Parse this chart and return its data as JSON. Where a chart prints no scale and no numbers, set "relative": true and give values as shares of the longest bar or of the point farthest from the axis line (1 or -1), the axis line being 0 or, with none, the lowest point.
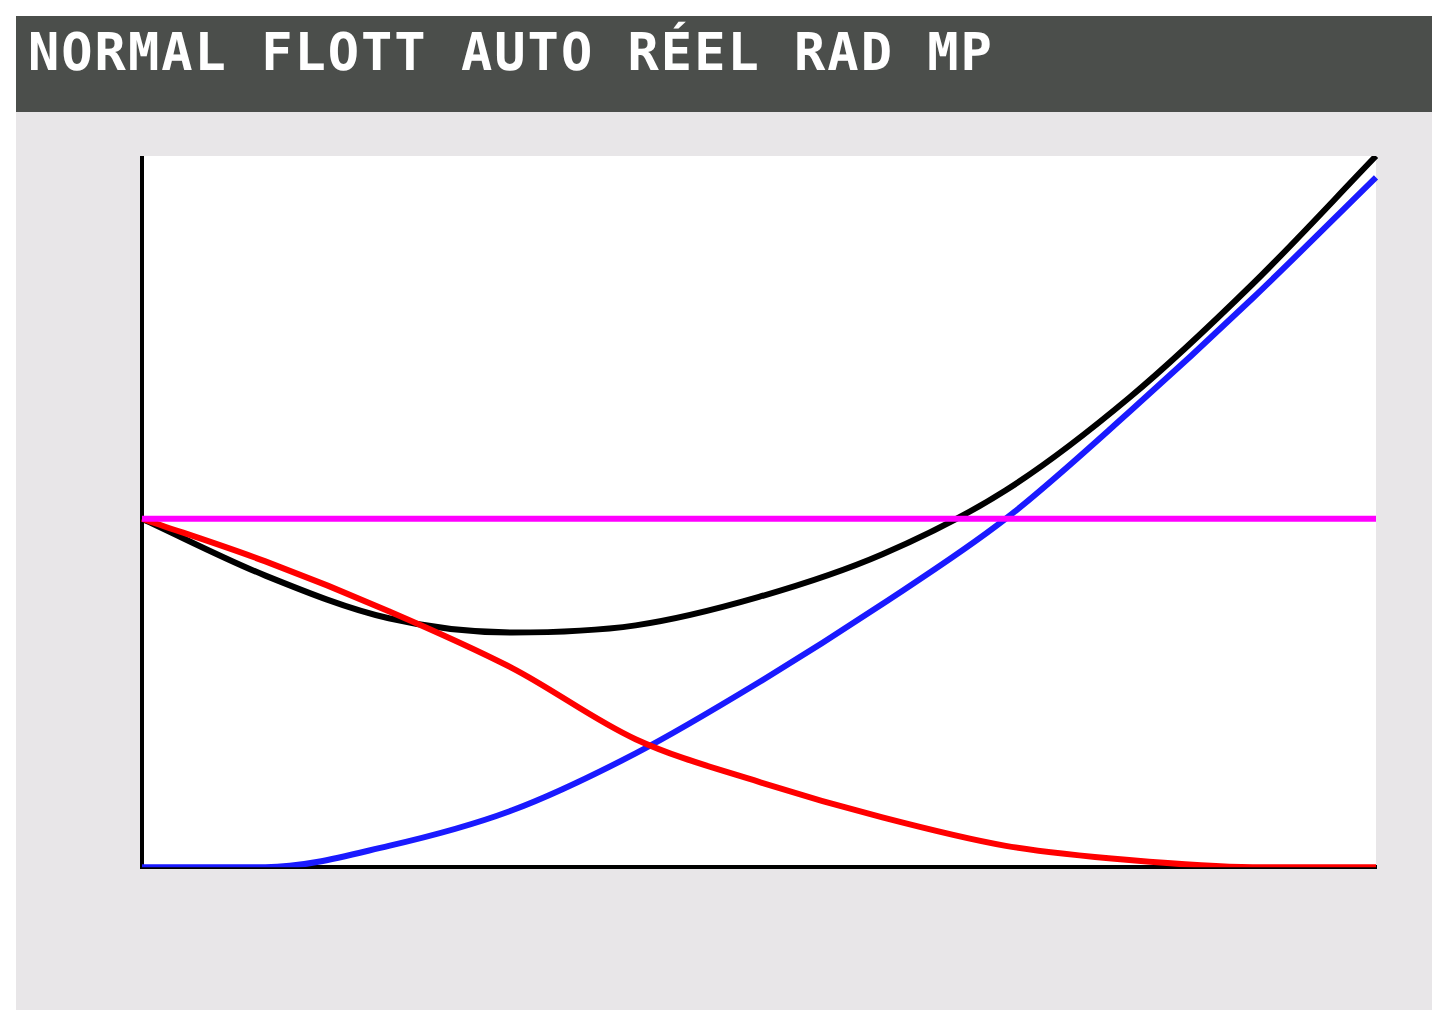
{
  "chart_data": {
    "type": "line",
    "title": "NORMAL FLOTT AUTO RÉEL RAD MP",
    "relative": true,
    "categories": [
      null,
      null,
      null,
      null,
      null,
      null,
      null,
      null,
      null,
      null,
      null
    ],
    "series": [
      {
        "color": "#ff00ff",
        "values": [
          0.49,
          0.49,
          0.49,
          0.49,
          0.49,
          0.49,
          0.49,
          0.49,
          0.49,
          0.49,
          0.49
        ]
      },
      {
        "color": "#ff0000",
        "values": [
          0.49,
          0.43,
          0.36,
          0.28,
          0.18,
          0.12,
          0.07,
          0.03,
          0.01,
          0,
          0
        ]
      },
      {
        "color": "#1a1aff",
        "values": [
          0,
          0,
          0.03,
          0.08,
          0.16,
          0.26,
          0.37,
          0.49,
          0.64,
          0.8,
          0.97
        ]
      },
      {
        "color": "#000000",
        "values": [
          0.49,
          0.41,
          0.35,
          0.33,
          0.34,
          0.38,
          0.44,
          0.53,
          0.66,
          0.82,
          1
        ]
      }
    ],
    "legend": false,
    "grid": false,
    "marker": "none",
    "line_style": "solid"
  }
}
